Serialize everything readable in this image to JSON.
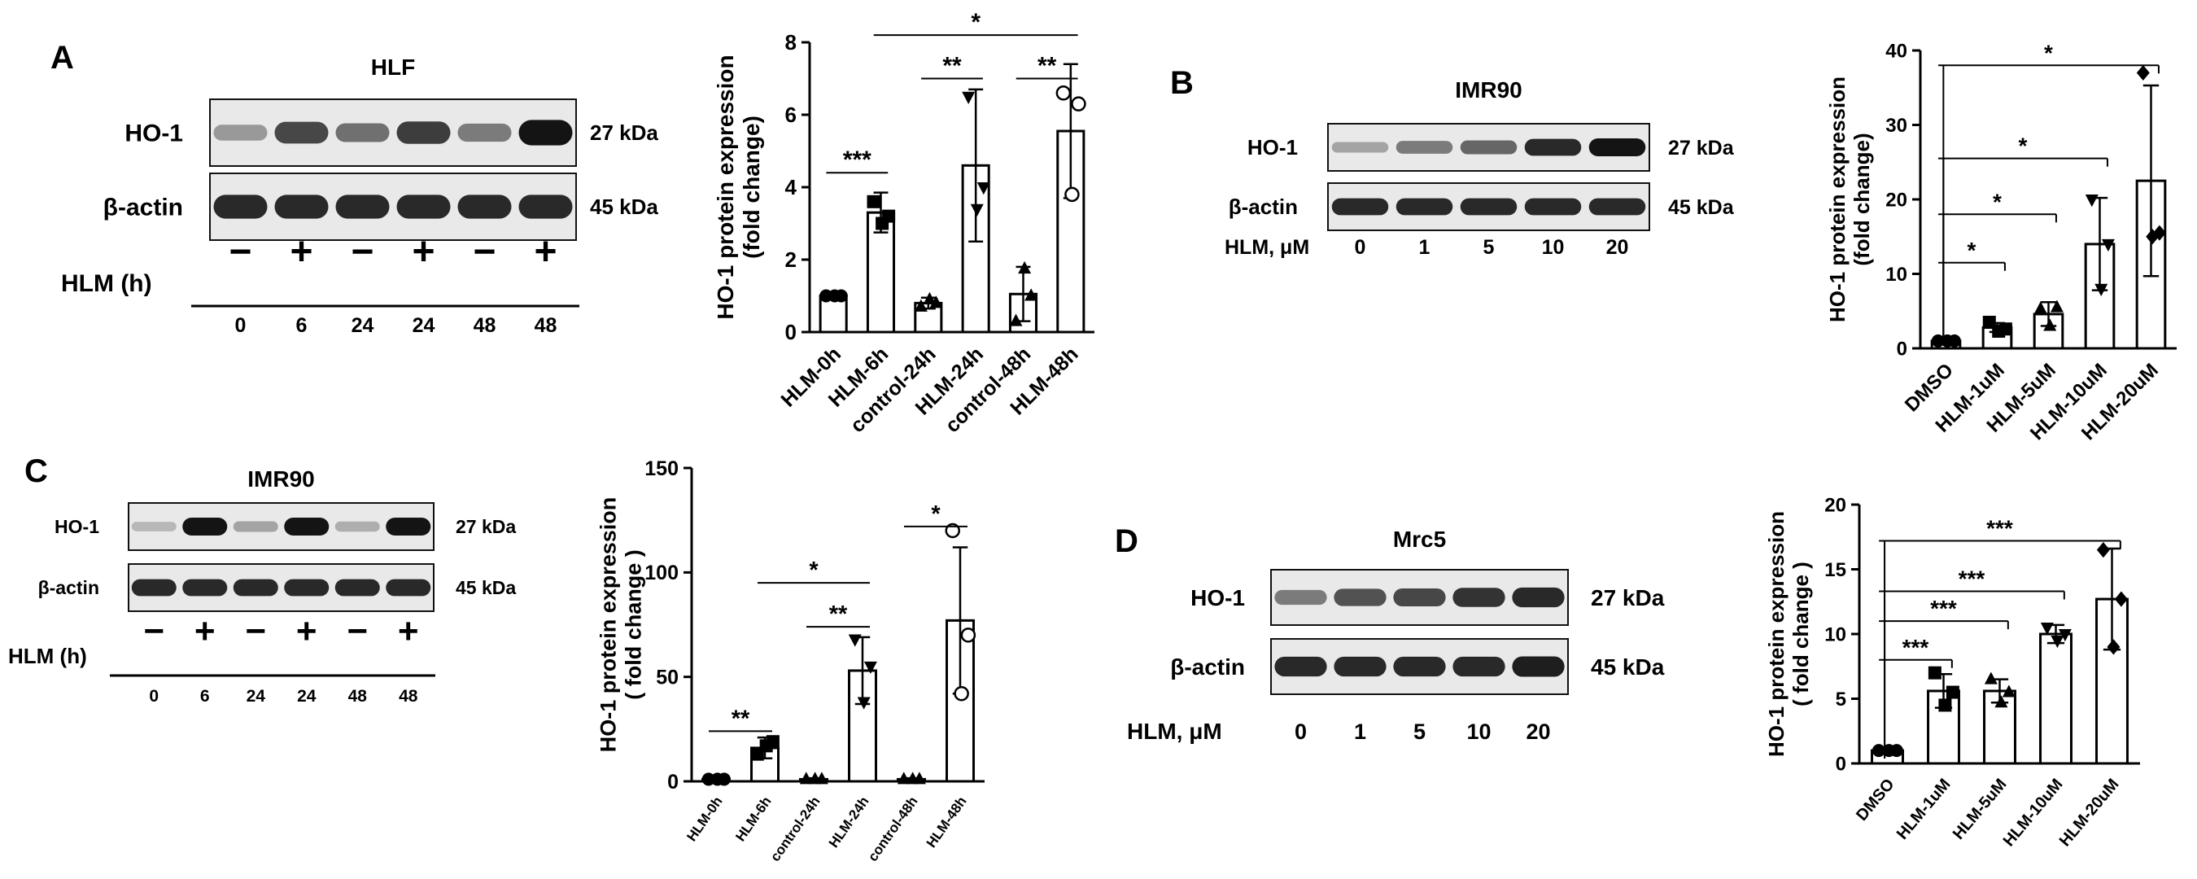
{
  "panels": [
    {
      "letter": "A",
      "blot": {
        "title": "HLF",
        "rows": [
          {
            "label": "HO-1",
            "kda": "27 kDa",
            "intensity": [
              0.35,
              0.75,
              0.55,
              0.8,
              0.5,
              1.0
            ]
          },
          {
            "label": "β-actin",
            "kda": "45 kDa",
            "intensity": [
              0.9,
              0.9,
              0.9,
              0.9,
              0.9,
              0.9
            ]
          }
        ],
        "treatment_label": "HLM (h)",
        "signs": [
          "−",
          "+",
          "−",
          "+",
          "−",
          "+"
        ],
        "lane_labels": [
          "0",
          "6",
          "24",
          "24",
          "48",
          "48"
        ]
      }
    },
    {
      "letter": "B",
      "blot": {
        "title": "IMR90",
        "rows": [
          {
            "label": "HO-1",
            "kda": "27 kDa",
            "intensity": [
              0.3,
              0.5,
              0.6,
              0.9,
              1.0
            ]
          },
          {
            "label": "β-actin",
            "kda": "45 kDa",
            "intensity": [
              0.9,
              0.9,
              0.9,
              0.9,
              0.9
            ]
          }
        ],
        "treatment_label": "HLM, μM",
        "signs": [],
        "lane_labels": [
          "0",
          "1",
          "5",
          "10",
          "20"
        ]
      }
    },
    {
      "letter": "C",
      "blot": {
        "title": "IMR90",
        "rows": [
          {
            "label": "HO-1",
            "kda": "27 kDa",
            "intensity": [
              0.2,
              1.0,
              0.3,
              1.0,
              0.25,
              1.0
            ]
          },
          {
            "label": "β-actin",
            "kda": "45 kDa",
            "intensity": [
              0.9,
              0.9,
              0.9,
              0.9,
              0.9,
              0.9
            ]
          }
        ],
        "treatment_label": "HLM (h)",
        "signs": [
          "−",
          "+",
          "−",
          "+",
          "−",
          "+"
        ],
        "lane_labels": [
          "0",
          "6",
          "24",
          "24",
          "48",
          "48"
        ]
      }
    },
    {
      "letter": "D",
      "blot": {
        "title": "Mrc5",
        "rows": [
          {
            "label": "HO-1",
            "kda": "27 kDa",
            "intensity": [
              0.5,
              0.7,
              0.75,
              0.85,
              0.9
            ]
          },
          {
            "label": "β-actin",
            "kda": "45 kDa",
            "intensity": [
              0.9,
              0.9,
              0.9,
              0.9,
              0.95
            ]
          }
        ],
        "treatment_label": "HLM, μM",
        "signs": [],
        "lane_labels": [
          "0",
          "1",
          "5",
          "10",
          "20"
        ]
      }
    }
  ],
  "chart_data": [
    {
      "type": "bar",
      "panel": "A",
      "ylabel": "HO-1 protein expression\n(fold change)",
      "ylim": [
        0,
        8
      ],
      "yticks": [
        0,
        2,
        4,
        6,
        8
      ],
      "categories": [
        "HLM-0h",
        "HLM-6h",
        "control-24h",
        "HLM-24h",
        "control-48h",
        "HLM-48h"
      ],
      "values": [
        1.0,
        3.3,
        0.8,
        4.6,
        1.05,
        5.55
      ],
      "errors": [
        0.05,
        0.55,
        0.15,
        2.1,
        0.75,
        1.85
      ],
      "points": [
        [
          1.0,
          1.0,
          1.0
        ],
        [
          3.6,
          3.0,
          3.2
        ],
        [
          0.7,
          0.9,
          0.8
        ],
        [
          6.5,
          3.4,
          4.0
        ],
        [
          0.3,
          1.75,
          1.0
        ],
        [
          6.6,
          3.8,
          6.3
        ]
      ],
      "markers": [
        "circle",
        "square",
        "triangle",
        "triangle-down",
        "triangle",
        "circle-open"
      ],
      "significance": [
        {
          "from": 0,
          "to": 1,
          "y": 4.4,
          "label": "***"
        },
        {
          "from": 2,
          "to": 3,
          "y": 7.0,
          "label": "**"
        },
        {
          "from": 4,
          "to": 5,
          "y": 7.0,
          "label": "**"
        },
        {
          "from": 1,
          "to": 5,
          "y": 8.2,
          "label": "*"
        }
      ]
    },
    {
      "type": "bar",
      "panel": "B",
      "ylabel": "HO-1 protein expression\n(fold change)",
      "ylim": [
        0,
        40
      ],
      "yticks": [
        0,
        10,
        20,
        30,
        40
      ],
      "categories": [
        "DMSO",
        "HLM-1uM",
        "HLM-5uM",
        "HLM-10uM",
        "HLM-20uM"
      ],
      "values": [
        1.0,
        2.8,
        4.6,
        14.0,
        22.5
      ],
      "errors": [
        0.1,
        0.6,
        1.6,
        6.2,
        12.8
      ],
      "points": [
        [
          1.0,
          1.0,
          1.0
        ],
        [
          3.5,
          2.3,
          2.6
        ],
        [
          5.3,
          3.0,
          5.5
        ],
        [
          20.0,
          8.0,
          14.0
        ],
        [
          37.0,
          15.0,
          15.5
        ]
      ],
      "markers": [
        "circle",
        "square",
        "triangle",
        "triangle-down",
        "diamond"
      ],
      "significance": [
        {
          "from": 0,
          "to": 1,
          "y": 11.5,
          "label": "*"
        },
        {
          "from": 0,
          "to": 2,
          "y": 18.0,
          "label": "*"
        },
        {
          "from": 0,
          "to": 3,
          "y": 25.5,
          "label": "*"
        },
        {
          "from": 0,
          "to": 4,
          "y": 38.0,
          "label": "*"
        }
      ]
    },
    {
      "type": "bar",
      "panel": "C",
      "ylabel": "HO-1 protein expression\n( fold change )",
      "ylim": [
        0,
        150
      ],
      "yticks": [
        0,
        50,
        100,
        150
      ],
      "categories": [
        "HLM-0h",
        "HLM-6h",
        "control-24h",
        "HLM-24h",
        "control-48h",
        "HLM-48h"
      ],
      "values": [
        1.0,
        16.0,
        1.0,
        53.0,
        1.0,
        77.0
      ],
      "errors": [
        0.3,
        5.0,
        0.5,
        16.0,
        0.5,
        35.0
      ],
      "points": [
        [
          1.0,
          1.0,
          1.0
        ],
        [
          13.0,
          17.0,
          19.0
        ],
        [
          1.0,
          1.0,
          1.0
        ],
        [
          68.0,
          38.0,
          55.0
        ],
        [
          1.0,
          1.0,
          1.0
        ],
        [
          120.0,
          42.0,
          70.0
        ]
      ],
      "markers": [
        "circle",
        "square",
        "triangle",
        "triangle-down",
        "triangle",
        "circle-open"
      ],
      "significance": [
        {
          "from": 0,
          "to": 1,
          "y": 24.0,
          "label": "**"
        },
        {
          "from": 2,
          "to": 3,
          "y": 74.0,
          "label": "**"
        },
        {
          "from": 1,
          "to": 3,
          "y": 95.0,
          "label": "*"
        },
        {
          "from": 4,
          "to": 5,
          "y": 122.0,
          "label": "*"
        }
      ]
    },
    {
      "type": "bar",
      "panel": "D",
      "ylabel": "HO-1 protein expression\n( fold change )",
      "ylim": [
        0,
        20
      ],
      "yticks": [
        0,
        5,
        10,
        15,
        20
      ],
      "categories": [
        "DMSO",
        "HLM-1uM",
        "HLM-5uM",
        "HLM-10uM",
        "HLM-20uM"
      ],
      "values": [
        1.0,
        5.6,
        5.6,
        10.0,
        12.7
      ],
      "errors": [
        0.1,
        1.3,
        0.9,
        0.7,
        3.9
      ],
      "points": [
        [
          1.0,
          1.0,
          1.0
        ],
        [
          7.0,
          4.5,
          5.5
        ],
        [
          6.5,
          4.7,
          5.5
        ],
        [
          10.5,
          9.5,
          10.0
        ],
        [
          16.5,
          9.0,
          12.7
        ]
      ],
      "markers": [
        "circle",
        "square",
        "triangle",
        "triangle-down",
        "diamond"
      ],
      "significance": [
        {
          "from": 0,
          "to": 1,
          "y": 8.0,
          "label": "***"
        },
        {
          "from": 0,
          "to": 2,
          "y": 11.0,
          "label": "***"
        },
        {
          "from": 0,
          "to": 3,
          "y": 13.3,
          "label": "***"
        },
        {
          "from": 0,
          "to": 4,
          "y": 17.2,
          "label": "***"
        }
      ]
    }
  ]
}
